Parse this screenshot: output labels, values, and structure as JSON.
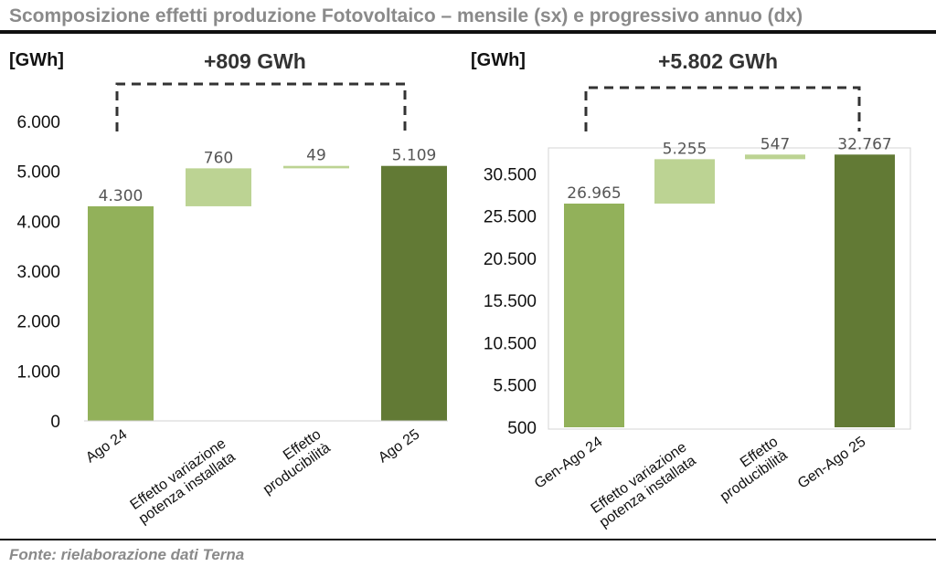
{
  "title": "Scomposizione effetti produzione Fotovoltaico – mensile (sx) e progressivo annuo (dx)",
  "source": "Fonte: rielaborazione dati Terna",
  "colors": {
    "start": "#92b15a",
    "effect": "#bcd393",
    "end": "#627a35"
  },
  "chart_data": [
    {
      "type": "bar",
      "subtype": "waterfall",
      "unit_label": "[GWh]",
      "delta_label": "+809 GWh",
      "categories": [
        "Ago 24",
        "Effetto variazione potenza installata",
        "Effetto producibilità",
        "Ago 25"
      ],
      "category_lines": [
        [
          "Ago 24"
        ],
        [
          "Effetto variazione",
          "potenza installata"
        ],
        [
          "Effetto",
          "producibilità"
        ],
        [
          "Ago 25"
        ]
      ],
      "values": [
        4300,
        760,
        49,
        5109
      ],
      "bar_roles": [
        "total",
        "increment",
        "increment",
        "total"
      ],
      "data_labels": [
        "4.300",
        "760",
        "49",
        "5.109"
      ],
      "ylim": [
        0,
        6000
      ],
      "yticks": [
        0,
        1000,
        2000,
        3000,
        4000,
        5000,
        6000
      ],
      "ytick_labels": [
        "0",
        "1.000",
        "2.000",
        "3.000",
        "4.000",
        "5.000",
        "6.000"
      ],
      "grid": false
    },
    {
      "type": "bar",
      "subtype": "waterfall",
      "unit_label": "[GWh]",
      "delta_label": "+5.802 GWh",
      "categories": [
        "Gen-Ago 24",
        "Effetto variazione potenza installata",
        "Effetto producibilità",
        "Gen-Ago 25"
      ],
      "category_lines": [
        [
          "Gen-Ago 24"
        ],
        [
          "Effetto variazione",
          "potenza installata"
        ],
        [
          "Effetto",
          "producibilità"
        ],
        [
          "Gen-Ago 25"
        ]
      ],
      "values": [
        26965,
        5255,
        547,
        32767
      ],
      "bar_roles": [
        "total",
        "increment",
        "increment",
        "total"
      ],
      "data_labels": [
        "26.965",
        "5.255",
        "547",
        "32.767"
      ],
      "ylim": [
        500,
        35500
      ],
      "yticks": [
        500,
        5500,
        10500,
        15500,
        20500,
        25500,
        30500
      ],
      "ytick_labels": [
        "500",
        "5.500",
        "10.500",
        "15.500",
        "20.500",
        "25.500",
        "30.500"
      ],
      "grid": false
    }
  ]
}
